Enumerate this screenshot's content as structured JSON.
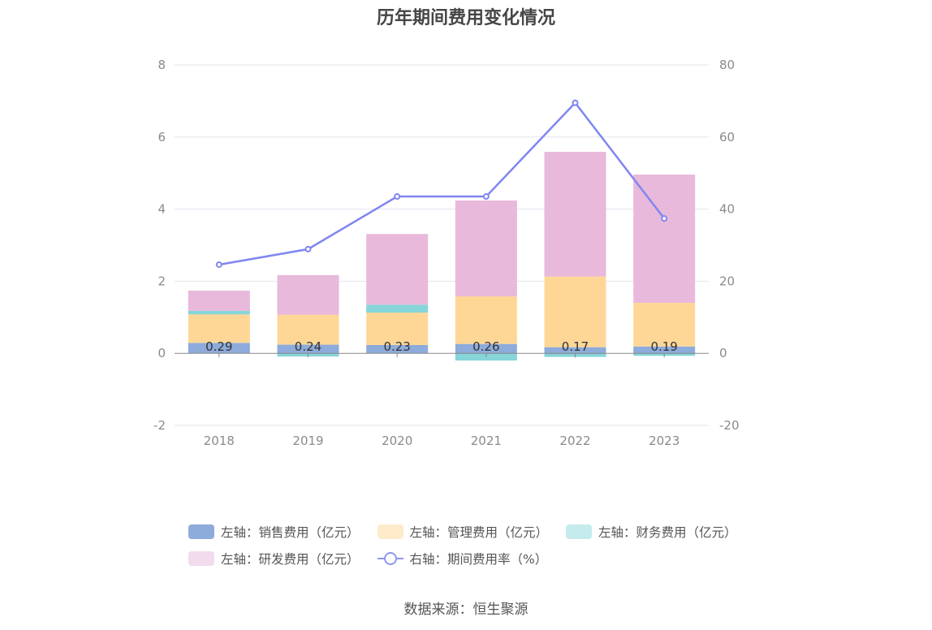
{
  "title": "历年期间费用变化情况",
  "source": "数据来源：恒生聚源",
  "colors": {
    "sales": "#8dabdb",
    "admin": "#fed797",
    "finance": "#86d5d9",
    "rd": "#e8b9da",
    "rate": "#7f86f0",
    "grid": "#e3e5ee",
    "axis": "#888888"
  },
  "legend": {
    "row1": [
      {
        "label": "左轴：销售费用（亿元）",
        "color": "#8dabdb"
      },
      {
        "label": "左轴：管理费用（亿元）",
        "color": "#fdebc9"
      },
      {
        "label": "左轴：财务费用（亿元）",
        "color": "#c5ebed"
      }
    ],
    "row2": [
      {
        "label": "左轴：研发费用（亿元）",
        "color": "#f2dbec"
      },
      {
        "label": "右轴：期间费用率（%）"
      }
    ]
  },
  "chart_data": {
    "type": "bar",
    "stacked": true,
    "categories": [
      "2018",
      "2019",
      "2020",
      "2021",
      "2022",
      "2023"
    ],
    "series": [
      {
        "name": "左轴：销售费用（亿元）",
        "axis": "left",
        "values": [
          0.29,
          0.24,
          0.23,
          0.26,
          0.17,
          0.19
        ],
        "labels": [
          "0.29",
          "0.24",
          "0.23",
          "0.26",
          "0.17",
          "0.19"
        ]
      },
      {
        "name": "左轴：管理费用（亿元）",
        "axis": "left",
        "values": [
          0.79,
          0.83,
          0.9,
          1.32,
          1.96,
          1.21
        ]
      },
      {
        "name": "左轴：财务费用（亿元）",
        "axis": "left",
        "values": [
          0.1,
          -0.09,
          0.22,
          -0.2,
          -0.1,
          -0.07
        ]
      },
      {
        "name": "左轴：研发费用（亿元）",
        "axis": "left",
        "values": [
          0.56,
          1.1,
          1.96,
          2.66,
          3.46,
          3.56
        ]
      },
      {
        "name": "右轴：期间费用率（%）",
        "axis": "right",
        "type": "line",
        "values": [
          24.6,
          28.9,
          43.5,
          43.5,
          69.5,
          37.4
        ]
      }
    ],
    "y_left": {
      "ticks": [
        "8",
        "6",
        "4",
        "2",
        "0",
        "-2"
      ],
      "range": [
        -2,
        8
      ]
    },
    "y_right": {
      "ticks": [
        "80",
        "60",
        "40",
        "20",
        "0",
        "-20"
      ],
      "range": [
        -20,
        80
      ]
    },
    "grid": true,
    "legend_position": "bottom"
  }
}
